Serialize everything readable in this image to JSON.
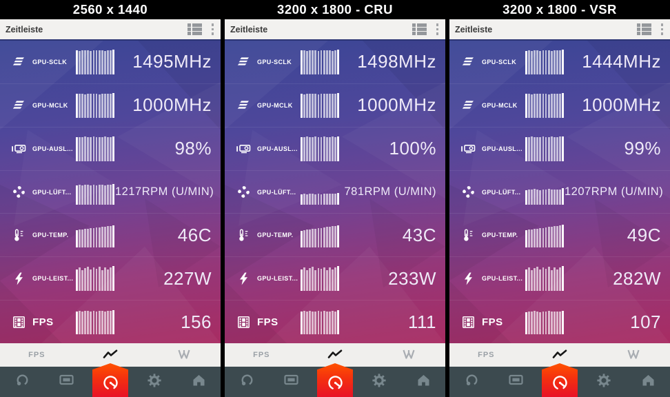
{
  "colors": {
    "accent_red_top": "#ff5200",
    "accent_red_bottom": "#e81227",
    "nav_bg": "#3c4a4f",
    "gradient_top": "#3a4695",
    "gradient_bottom": "#a82c62",
    "header_bg": "#f2f1ef"
  },
  "tab_bar": {
    "fps_label": "FPS",
    "tabs": [
      {
        "id": "fps",
        "label": "FPS",
        "active": false
      },
      {
        "id": "timeline",
        "icon": "zigzag-line-icon",
        "active": true
      },
      {
        "id": "wattman",
        "icon": "wattman-w-icon",
        "active": false
      }
    ]
  },
  "nav_bar": {
    "items": [
      "performance-ring-icon",
      "display-icon",
      "gauge-icon",
      "settings-gear-icon",
      "home-icon"
    ],
    "active_index": 2
  },
  "panels": [
    {
      "title": "2560 x 1440",
      "header_title": "Zeitleiste",
      "metrics": [
        {
          "id": "gpu-sclk",
          "icon": "speed",
          "label": "GPU-SCLK",
          "value": "1495MHz",
          "small": false,
          "bars": [
            97,
            95,
            98,
            96,
            97,
            95,
            98,
            97,
            96,
            98,
            95,
            97,
            96,
            100
          ]
        },
        {
          "id": "gpu-mclk",
          "icon": "speed",
          "label": "GPU-MCLK",
          "value": "1000MHz",
          "small": false,
          "bars": [
            97,
            96,
            98,
            95,
            97,
            96,
            98,
            97,
            95,
            98,
            96,
            97,
            98,
            100
          ]
        },
        {
          "id": "gpu-ausl",
          "icon": "gpu",
          "label": "GPU-AUSL...",
          "value": "98%",
          "small": false,
          "bars": [
            96,
            97,
            95,
            98,
            96,
            97,
            98,
            95,
            97,
            96,
            98,
            97,
            96,
            100
          ]
        },
        {
          "id": "gpu-lueft",
          "icon": "fan",
          "label": "GPU-LÜFT...",
          "value": "1217RPM (U/MIN)",
          "small": true,
          "bars": [
            76,
            79,
            77,
            80,
            78,
            76,
            79,
            77,
            80,
            78,
            77,
            79,
            78,
            82
          ]
        },
        {
          "id": "gpu-temp",
          "icon": "thermo",
          "label": "GPU-TEMP.",
          "value": "46C",
          "small": false,
          "bars": [
            70,
            72,
            73,
            75,
            76,
            78,
            79,
            81,
            82,
            84,
            85,
            87,
            88,
            91
          ]
        },
        {
          "id": "gpu-leist",
          "icon": "bolt",
          "label": "GPU-LEIST...",
          "value": "227W",
          "small": false,
          "bars": [
            88,
            96,
            84,
            93,
            98,
            86,
            94,
            90,
            97,
            85,
            95,
            88,
            96,
            100
          ]
        },
        {
          "id": "fps",
          "icon": "film",
          "label": "FPS",
          "value": "156",
          "small": false,
          "big_label": true,
          "bars": [
            92,
            95,
            93,
            96,
            94,
            92,
            95,
            93,
            96,
            94,
            93,
            95,
            94,
            98
          ]
        }
      ]
    },
    {
      "title": "3200 x 1800 - CRU",
      "header_title": "Zeitleiste",
      "metrics": [
        {
          "id": "gpu-sclk",
          "icon": "speed",
          "label": "GPU-SCLK",
          "value": "1498MHz",
          "small": false,
          "bars": [
            96,
            98,
            95,
            97,
            96,
            98,
            95,
            97,
            98,
            96,
            97,
            95,
            98,
            100
          ]
        },
        {
          "id": "gpu-mclk",
          "icon": "speed",
          "label": "GPU-MCLK",
          "value": "1000MHz",
          "small": false,
          "bars": [
            97,
            95,
            98,
            96,
            97,
            98,
            95,
            97,
            96,
            98,
            97,
            96,
            98,
            100
          ]
        },
        {
          "id": "gpu-ausl",
          "icon": "gpu",
          "label": "GPU-AUSL...",
          "value": "100%",
          "small": false,
          "bars": [
            97,
            96,
            98,
            97,
            95,
            98,
            96,
            97,
            98,
            96,
            97,
            98,
            97,
            100
          ]
        },
        {
          "id": "gpu-lueft",
          "icon": "fan",
          "label": "GPU-LÜFT...",
          "value": "781RPM (U/MIN)",
          "small": true,
          "bars": [
            40,
            42,
            41,
            43,
            42,
            40,
            43,
            41,
            42,
            44,
            42,
            43,
            42,
            46
          ]
        },
        {
          "id": "gpu-temp",
          "icon": "thermo",
          "label": "GPU-TEMP.",
          "value": "43C",
          "small": false,
          "bars": [
            68,
            70,
            72,
            73,
            75,
            77,
            78,
            80,
            82,
            83,
            85,
            86,
            88,
            90
          ]
        },
        {
          "id": "gpu-leist",
          "icon": "bolt",
          "label": "GPU-LEIST...",
          "value": "233W",
          "small": false,
          "bars": [
            86,
            95,
            83,
            92,
            97,
            85,
            93,
            89,
            96,
            84,
            94,
            87,
            95,
            100
          ]
        },
        {
          "id": "fps",
          "icon": "film",
          "label": "FPS",
          "value": "111",
          "small": false,
          "big_label": true,
          "bars": [
            91,
            94,
            92,
            95,
            93,
            91,
            94,
            92,
            95,
            93,
            92,
            94,
            93,
            97
          ]
        }
      ]
    },
    {
      "title": "3200 x 1800 - VSR",
      "header_title": "Zeitleiste",
      "metrics": [
        {
          "id": "gpu-sclk",
          "icon": "speed",
          "label": "GPU-SCLK",
          "value": "1444MHz",
          "small": false,
          "bars": [
            95,
            97,
            94,
            96,
            97,
            95,
            98,
            96,
            97,
            95,
            96,
            98,
            96,
            100
          ]
        },
        {
          "id": "gpu-mclk",
          "icon": "speed",
          "label": "GPU-MCLK",
          "value": "1000MHz",
          "small": false,
          "bars": [
            96,
            98,
            95,
            97,
            96,
            98,
            96,
            97,
            95,
            98,
            96,
            97,
            98,
            100
          ]
        },
        {
          "id": "gpu-ausl",
          "icon": "gpu",
          "label": "GPU-AUSL...",
          "value": "99%",
          "small": false,
          "bars": [
            96,
            97,
            98,
            95,
            97,
            96,
            98,
            97,
            95,
            98,
            97,
            96,
            98,
            100
          ]
        },
        {
          "id": "gpu-lueft",
          "icon": "fan",
          "label": "GPU-LÜFT...",
          "value": "1207RPM (U/MIN)",
          "small": true,
          "bars": [
            58,
            61,
            59,
            62,
            60,
            58,
            61,
            59,
            62,
            60,
            59,
            61,
            60,
            64
          ]
        },
        {
          "id": "gpu-temp",
          "icon": "thermo",
          "label": "GPU-TEMP.",
          "value": "49C",
          "small": false,
          "bars": [
            70,
            72,
            74,
            75,
            77,
            79,
            80,
            82,
            84,
            85,
            87,
            88,
            90,
            93
          ]
        },
        {
          "id": "gpu-leist",
          "icon": "bolt",
          "label": "GPU-LEIST...",
          "value": "282W",
          "small": false,
          "bars": [
            87,
            95,
            84,
            93,
            98,
            86,
            94,
            90,
            97,
            85,
            95,
            88,
            96,
            100
          ]
        },
        {
          "id": "fps",
          "icon": "film",
          "label": "FPS",
          "value": "107",
          "small": false,
          "big_label": true,
          "bars": [
            90,
            93,
            91,
            94,
            92,
            90,
            93,
            91,
            94,
            92,
            91,
            93,
            92,
            96
          ]
        }
      ]
    }
  ]
}
